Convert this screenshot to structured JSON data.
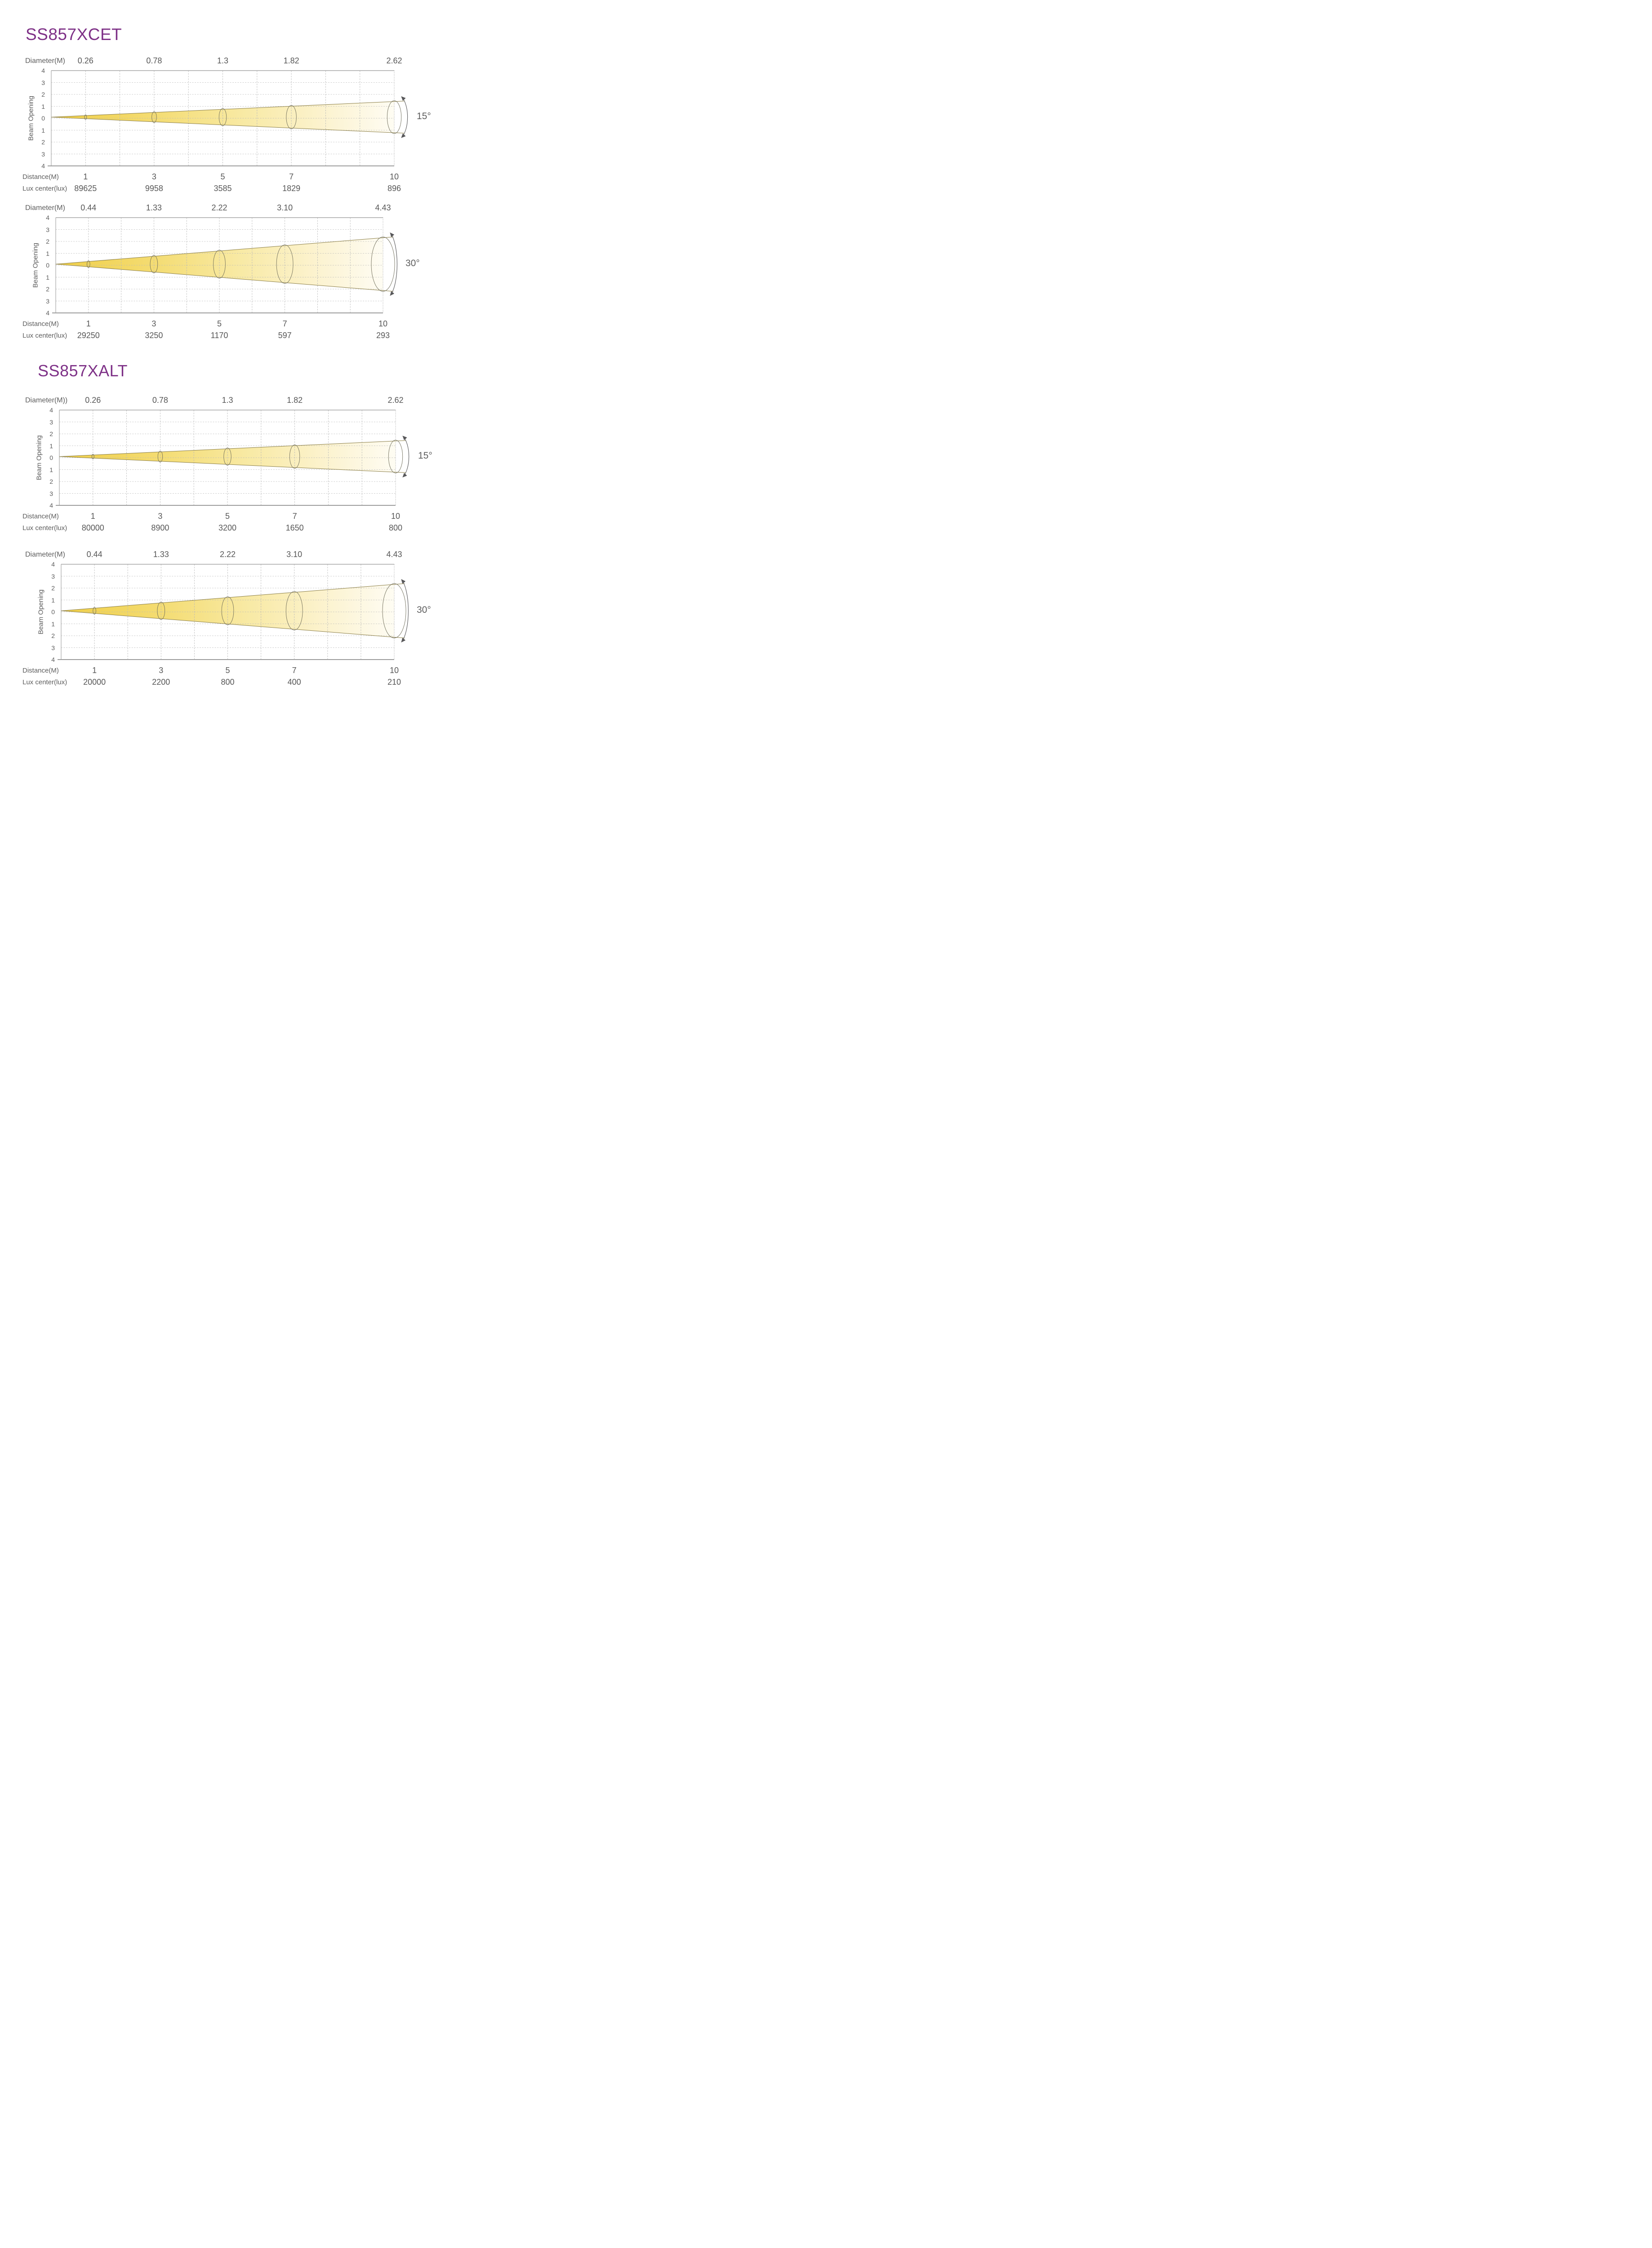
{
  "page": {
    "background": "#ffffff"
  },
  "colors": {
    "title": "#7e3187",
    "label_text": "#5d5d5d",
    "value_text": "#575757",
    "grid": "#b9b9b9",
    "plot_border": "#a6a6a6",
    "bottom_axis": "#9c9c9c",
    "beam_edge": "#8a7d45",
    "ellipse_stroke": "#6f6d5a",
    "arc_arrow": "#58585a",
    "beam_gradient": [
      "#f0cf47",
      "#f4dc72",
      "#f8e9a2",
      "#fcf3d0",
      "#fefcf3"
    ]
  },
  "sections": [
    {
      "title": "SS857XCET",
      "chart_indexes": [
        0,
        1
      ]
    },
    {
      "title": "SS857XALT",
      "chart_indexes": [
        2,
        3
      ]
    }
  ],
  "chart_data": [
    {
      "type": "area",
      "subtype": "beam-cone-photometric",
      "beam_angle_label": "15°",
      "beam_angle_deg": 15,
      "diameter_label": "Diameter(M)",
      "distance_label": "Distance(M)",
      "lux_label": "Lux center(lux)",
      "y_axis_label": "Beam Opening",
      "distances_m": [
        1,
        3,
        5,
        7,
        10
      ],
      "diameters_m": [
        "0.26",
        "0.78",
        "1.3",
        "1.82",
        "2.62"
      ],
      "lux_center": [
        89625,
        9958,
        3585,
        1829,
        896
      ],
      "x_range": [
        0,
        10
      ],
      "y_range": [
        -4,
        4
      ],
      "y_ticks": [
        "4",
        "3",
        "2",
        "1",
        "0",
        "1",
        "2",
        "3",
        "4"
      ],
      "grid": true
    },
    {
      "type": "area",
      "subtype": "beam-cone-photometric",
      "beam_angle_label": "30°",
      "beam_angle_deg": 30,
      "diameter_label": "Diameter(M)",
      "distance_label": "Distance(M)",
      "lux_label": "Lux center(lux)",
      "y_axis_label": "Beam Opening",
      "distances_m": [
        1,
        3,
        5,
        7,
        10
      ],
      "diameters_m": [
        "0.44",
        "1.33",
        "2.22",
        "3.10",
        "4.43"
      ],
      "lux_center": [
        29250,
        3250,
        1170,
        597,
        293
      ],
      "x_range": [
        0,
        10
      ],
      "y_range": [
        -4,
        4
      ],
      "y_ticks": [
        "4",
        "3",
        "2",
        "1",
        "0",
        "1",
        "2",
        "3",
        "4"
      ],
      "grid": true
    },
    {
      "type": "area",
      "subtype": "beam-cone-photometric",
      "beam_angle_label": "15°",
      "beam_angle_deg": 15,
      "diameter_label": "Diameter(M))",
      "distance_label": "Distance(M)",
      "lux_label": "Lux center(lux)",
      "y_axis_label": "Beam Opening",
      "distances_m": [
        1,
        3,
        5,
        7,
        10
      ],
      "diameters_m": [
        "0.26",
        "0.78",
        "1.3",
        "1.82",
        "2.62"
      ],
      "lux_center": [
        80000,
        8900,
        3200,
        1650,
        800
      ],
      "x_range": [
        0,
        10
      ],
      "y_range": [
        -4,
        4
      ],
      "y_ticks": [
        "4",
        "3",
        "2",
        "1",
        "0",
        "1",
        "2",
        "3",
        "4"
      ],
      "grid": true
    },
    {
      "type": "area",
      "subtype": "beam-cone-photometric",
      "beam_angle_label": "30°",
      "beam_angle_deg": 30,
      "diameter_label": "Diameter(M)",
      "distance_label": "Distance(M)",
      "lux_label": "Lux center(lux)",
      "y_axis_label": "Beam Opening",
      "distances_m": [
        1,
        3,
        5,
        7,
        10
      ],
      "diameters_m": [
        "0.44",
        "1.33",
        "2.22",
        "3.10",
        "4.43"
      ],
      "lux_center": [
        20000,
        2200,
        800,
        400,
        210
      ],
      "x_range": [
        0,
        10
      ],
      "y_range": [
        -4,
        4
      ],
      "y_ticks": [
        "4",
        "3",
        "2",
        "1",
        "0",
        "1",
        "2",
        "3",
        "4"
      ],
      "grid": true
    }
  ]
}
